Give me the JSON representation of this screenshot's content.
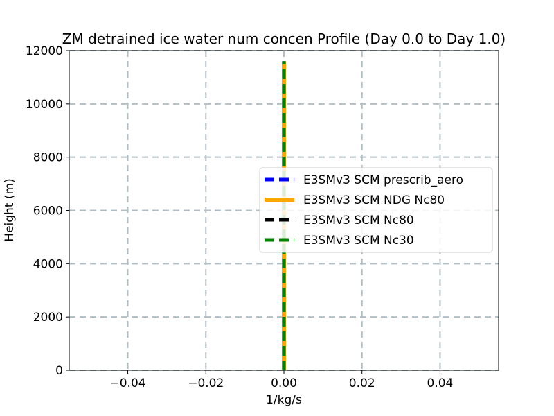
{
  "chart_data": {
    "type": "line",
    "title": "ZM detrained ice water num concen Profile (Day 0.0 to Day 1.0)",
    "xlabel": "1/kg/s",
    "ylabel": "Height (m)",
    "xlim": [
      -0.055,
      0.055
    ],
    "ylim": [
      0,
      12000
    ],
    "xticks": [
      -0.04,
      -0.02,
      0.0,
      0.02,
      0.04
    ],
    "xtick_labels": [
      "−0.04",
      "−0.02",
      "0.00",
      "0.02",
      "0.04"
    ],
    "yticks": [
      0,
      2000,
      4000,
      6000,
      8000,
      10000,
      12000
    ],
    "ytick_labels": [
      "0",
      "2000",
      "4000",
      "6000",
      "8000",
      "10000",
      "12000"
    ],
    "grid": true,
    "legend_position": "center-right",
    "series": [
      {
        "name": "E3SMv3 SCM prescrib_aero",
        "color": "#0000ff",
        "style": "dashed",
        "x": [
          0.0,
          0.0
        ],
        "y": [
          0,
          11600
        ]
      },
      {
        "name": "E3SMv3 SCM NDG Nc80",
        "color": "#ffa500",
        "style": "solid",
        "x": [
          0.0,
          0.0
        ],
        "y": [
          0,
          11600
        ]
      },
      {
        "name": "E3SMv3 SCM Nc80",
        "color": "#000000",
        "style": "dashed",
        "x": [
          0.0,
          0.0
        ],
        "y": [
          0,
          11600
        ]
      },
      {
        "name": "E3SMv3 SCM Nc30",
        "color": "#008000",
        "style": "dashed",
        "x": [
          0.0,
          0.0
        ],
        "y": [
          0,
          11600
        ]
      }
    ]
  }
}
